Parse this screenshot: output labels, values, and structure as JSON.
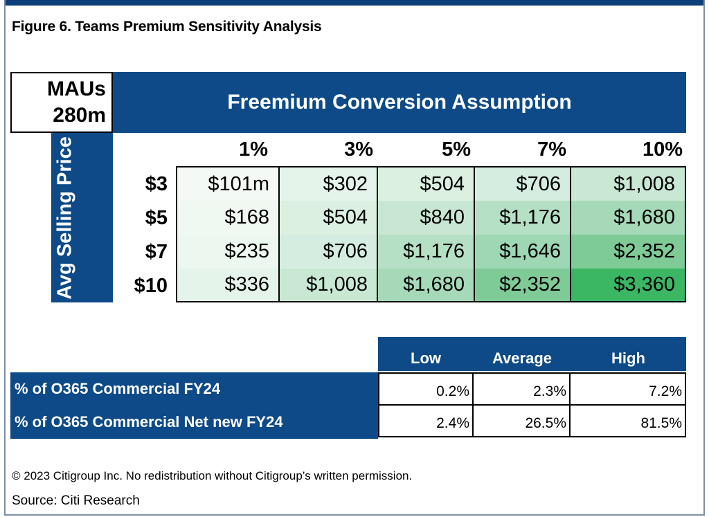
{
  "figure_title": "Figure 6. Teams Premium Sensitivity Analysis",
  "mau_box": {
    "line1": "MAUs",
    "line2": "280m"
  },
  "header": "Freemium Conversion Assumption",
  "side_label": "Avg Selling Price",
  "columns": [
    "1%",
    "3%",
    "5%",
    "7%",
    "10%"
  ],
  "rows": [
    {
      "label": "$3",
      "values": [
        "$101m",
        "$302",
        "$504",
        "$706",
        "$1,008"
      ]
    },
    {
      "label": "$5",
      "values": [
        "$168",
        "$504",
        "$840",
        "$1,176",
        "$1,680"
      ]
    },
    {
      "label": "$7",
      "values": [
        "$235",
        "$706",
        "$1,176",
        "$1,646",
        "$2,352"
      ]
    },
    {
      "label": "$10",
      "values": [
        "$336",
        "$1,008",
        "$1,680",
        "$2,352",
        "$3,360"
      ]
    }
  ],
  "cell_colors": [
    [
      "#f3f9f5",
      "#e5f4ea",
      "#dcf0e2",
      "#d4ede0",
      "#c9e8d4"
    ],
    [
      "#f0f8f2",
      "#dcf0e2",
      "#c8e7d2",
      "#b6e0c5",
      "#a5d9b8"
    ],
    [
      "#ecf7ef",
      "#d4ede0",
      "#b6e0c5",
      "#9dd7b3",
      "#7fcb97"
    ],
    [
      "#e5f4ea",
      "#c9e8d4",
      "#a5d9b8",
      "#7fcb97",
      "#3bb764"
    ]
  ],
  "summary": {
    "headers": [
      "Low",
      "Average",
      "High"
    ],
    "rows": [
      {
        "label": "% of O365 Commercial FY24",
        "values": [
          "0.2%",
          "2.3%",
          "7.2%"
        ]
      },
      {
        "label": "% of O365 Commercial Net new FY24",
        "values": [
          "2.4%",
          "26.5%",
          "81.5%"
        ]
      }
    ]
  },
  "copyright": "© 2023 Citigroup Inc. No redistribution without Citigroup’s written permission.",
  "source": "Source: Citi Research",
  "colors": {
    "navy": "#0e4a87",
    "frame": "#7f8ea8"
  }
}
